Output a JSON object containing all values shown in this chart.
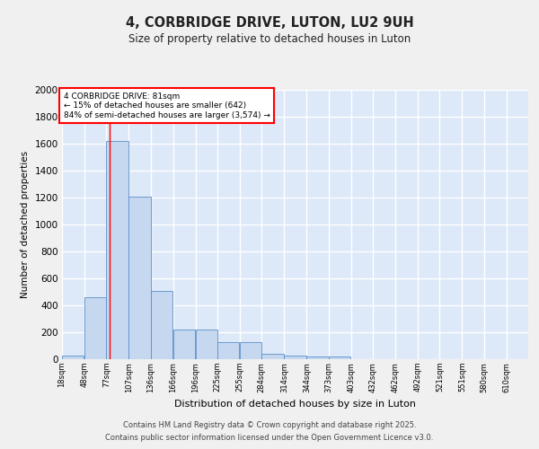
{
  "title": "4, CORBRIDGE DRIVE, LUTON, LU2 9UH",
  "subtitle": "Size of property relative to detached houses in Luton",
  "xlabel": "Distribution of detached houses by size in Luton",
  "ylabel": "Number of detached properties",
  "bins": [
    18,
    48,
    77,
    107,
    136,
    166,
    196,
    225,
    255,
    284,
    314,
    344,
    373,
    403,
    432,
    462,
    492,
    521,
    551,
    580,
    610
  ],
  "bin_labels": [
    "18sqm",
    "48sqm",
    "77sqm",
    "107sqm",
    "136sqm",
    "166sqm",
    "196sqm",
    "225sqm",
    "255sqm",
    "284sqm",
    "314sqm",
    "344sqm",
    "373sqm",
    "403sqm",
    "432sqm",
    "462sqm",
    "492sqm",
    "521sqm",
    "551sqm",
    "580sqm",
    "610sqm"
  ],
  "counts": [
    30,
    460,
    1620,
    1210,
    510,
    220,
    220,
    130,
    130,
    40,
    30,
    20,
    20,
    0,
    0,
    0,
    0,
    0,
    0,
    0
  ],
  "bar_color": "#c5d8f0",
  "bar_edge_color": "#5b8fc9",
  "red_line_x": 81,
  "annotation_line1": "4 CORBRIDGE DRIVE: 81sqm",
  "annotation_line2": "← 15% of detached houses are smaller (642)",
  "annotation_line3": "84% of semi-detached houses are larger (3,574) →",
  "ylim": [
    0,
    2000
  ],
  "yticks": [
    0,
    200,
    400,
    600,
    800,
    1000,
    1200,
    1400,
    1600,
    1800,
    2000
  ],
  "background_color": "#dde8f8",
  "grid_color": "#ffffff",
  "fig_background": "#f0f0f0",
  "footer_line1": "Contains HM Land Registry data © Crown copyright and database right 2025.",
  "footer_line2": "Contains public sector information licensed under the Open Government Licence v3.0."
}
